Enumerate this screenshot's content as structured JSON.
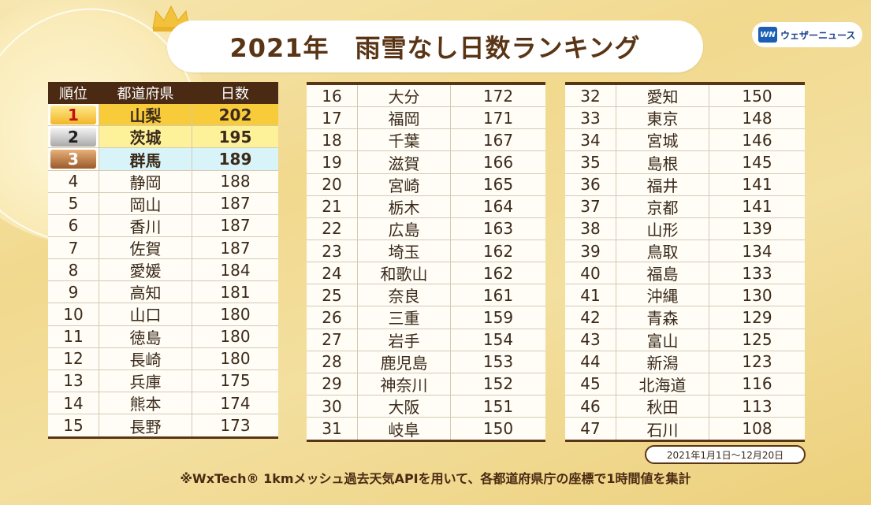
{
  "title": "2021年　雨雪なし日数ランキング",
  "logo": {
    "mark": "WN",
    "text": "ウェザーニュース"
  },
  "header": {
    "rank": "順位",
    "prefecture": "都道府県",
    "days": "日数"
  },
  "rows": [
    {
      "rank": "1",
      "name": "山梨",
      "days": "202"
    },
    {
      "rank": "2",
      "name": "茨城",
      "days": "195"
    },
    {
      "rank": "3",
      "name": "群馬",
      "days": "189"
    },
    {
      "rank": "4",
      "name": "静岡",
      "days": "188"
    },
    {
      "rank": "5",
      "name": "岡山",
      "days": "187"
    },
    {
      "rank": "6",
      "name": "香川",
      "days": "187"
    },
    {
      "rank": "7",
      "name": "佐賀",
      "days": "187"
    },
    {
      "rank": "8",
      "name": "愛媛",
      "days": "184"
    },
    {
      "rank": "9",
      "name": "高知",
      "days": "181"
    },
    {
      "rank": "10",
      "name": "山口",
      "days": "180"
    },
    {
      "rank": "11",
      "name": "徳島",
      "days": "180"
    },
    {
      "rank": "12",
      "name": "長崎",
      "days": "180"
    },
    {
      "rank": "13",
      "name": "兵庫",
      "days": "175"
    },
    {
      "rank": "14",
      "name": "熊本",
      "days": "174"
    },
    {
      "rank": "15",
      "name": "長野",
      "days": "173"
    },
    {
      "rank": "16",
      "name": "大分",
      "days": "172"
    },
    {
      "rank": "17",
      "name": "福岡",
      "days": "171"
    },
    {
      "rank": "18",
      "name": "千葉",
      "days": "167"
    },
    {
      "rank": "19",
      "name": "滋賀",
      "days": "166"
    },
    {
      "rank": "20",
      "name": "宮崎",
      "days": "165"
    },
    {
      "rank": "21",
      "name": "栃木",
      "days": "164"
    },
    {
      "rank": "22",
      "name": "広島",
      "days": "163"
    },
    {
      "rank": "23",
      "name": "埼玉",
      "days": "162"
    },
    {
      "rank": "24",
      "name": "和歌山",
      "days": "162"
    },
    {
      "rank": "25",
      "name": "奈良",
      "days": "161"
    },
    {
      "rank": "26",
      "name": "三重",
      "days": "159"
    },
    {
      "rank": "27",
      "name": "岩手",
      "days": "154"
    },
    {
      "rank": "28",
      "name": "鹿児島",
      "days": "153"
    },
    {
      "rank": "29",
      "name": "神奈川",
      "days": "152"
    },
    {
      "rank": "30",
      "name": "大阪",
      "days": "151"
    },
    {
      "rank": "31",
      "name": "岐阜",
      "days": "150"
    },
    {
      "rank": "32",
      "name": "愛知",
      "days": "150"
    },
    {
      "rank": "33",
      "name": "東京",
      "days": "148"
    },
    {
      "rank": "34",
      "name": "宮城",
      "days": "146"
    },
    {
      "rank": "35",
      "name": "島根",
      "days": "145"
    },
    {
      "rank": "36",
      "name": "福井",
      "days": "141"
    },
    {
      "rank": "37",
      "name": "京都",
      "days": "141"
    },
    {
      "rank": "38",
      "name": "山形",
      "days": "139"
    },
    {
      "rank": "39",
      "name": "鳥取",
      "days": "134"
    },
    {
      "rank": "40",
      "name": "福島",
      "days": "133"
    },
    {
      "rank": "41",
      "name": "沖縄",
      "days": "130"
    },
    {
      "rank": "42",
      "name": "青森",
      "days": "129"
    },
    {
      "rank": "43",
      "name": "富山",
      "days": "125"
    },
    {
      "rank": "44",
      "name": "新潟",
      "days": "123"
    },
    {
      "rank": "45",
      "name": "北海道",
      "days": "116"
    },
    {
      "rank": "46",
      "name": "秋田",
      "days": "113"
    },
    {
      "rank": "47",
      "name": "石川",
      "days": "108"
    }
  ],
  "period": "2021年1月1日〜12月20日",
  "footnote": "※WxTech® 1kmメッシュ過去天気APIを用いて、各都道府県庁の座標で1時間値を集計",
  "colors": {
    "brown": "#4a2a12",
    "gold": "#f7cb3a",
    "yellow": "#fdf29a",
    "cyan": "#d8f4f8"
  }
}
